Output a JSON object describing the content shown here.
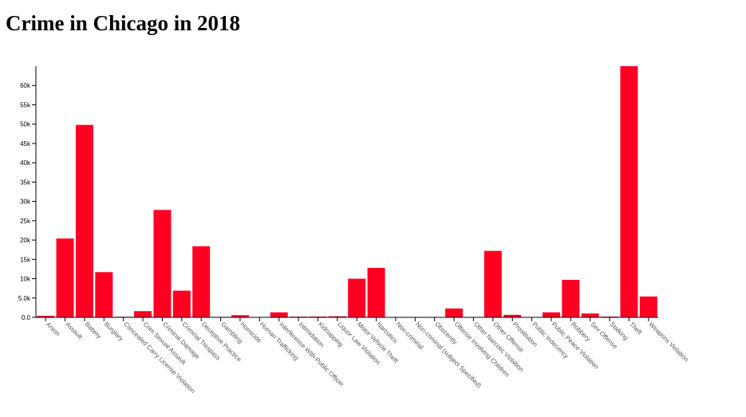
{
  "page": {
    "title": "Crime in Chicago in 2018"
  },
  "chart_data": {
    "type": "bar",
    "title": "Crime in Chicago in 2018",
    "xlabel": "",
    "ylabel": "",
    "ylim": [
      0,
      65000
    ],
    "bar_color": "#ff0022",
    "grid": false,
    "yticks": [
      0,
      5000,
      10000,
      15000,
      20000,
      25000,
      30000,
      35000,
      40000,
      45000,
      50000,
      55000,
      60000
    ],
    "ytick_labels": [
      "0.0",
      "5.0k",
      "10k",
      "15k",
      "20k",
      "25k",
      "30k",
      "35k",
      "40k",
      "45k",
      "50k",
      "55k",
      "60k"
    ],
    "categories": [
      "Arson",
      "Assault",
      "Battery",
      "Burglary",
      "Concealed Carry License Violation",
      "Crim Sexual Assault",
      "Criminal Damage",
      "Criminal Trespass",
      "Deceptive Practice",
      "Gambling",
      "Homicide",
      "Human Trafficking",
      "Interference With Public Officer",
      "Intimidation",
      "Kidnapping",
      "Liquor Law Violation",
      "Motor Vehicle Theft",
      "Narcotics",
      "Non-criminal",
      "Non-criminal (subject Specified)",
      "Obscenity",
      "Offense Involving Children",
      "Other Narcotic Violation",
      "Other Offense",
      "Prostitution",
      "Public Indecency",
      "Public Peace Violation",
      "Robbery",
      "Sex Offense",
      "Stalking",
      "Theft",
      "Weapons Violation"
    ],
    "values": [
      380,
      20400,
      49800,
      11700,
      150,
      1600,
      27800,
      6900,
      18400,
      120,
      560,
      20,
      1300,
      170,
      200,
      270,
      10000,
      12800,
      30,
      10,
      90,
      2300,
      10,
      17200,
      650,
      10,
      1300,
      9700,
      1000,
      200,
      65000,
      5400
    ]
  }
}
